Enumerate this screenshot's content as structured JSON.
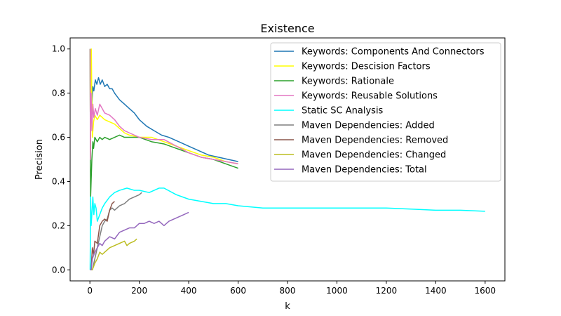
{
  "chart_data": {
    "type": "line",
    "title": "Existence",
    "xlabel": "k",
    "ylabel": "Precision",
    "xlim": [
      -80,
      1680
    ],
    "ylim": [
      -0.05,
      1.05
    ],
    "xticks": [
      0,
      200,
      400,
      600,
      800,
      1000,
      1200,
      1400,
      1600
    ],
    "yticks": [
      0.0,
      0.2,
      0.4,
      0.6,
      0.8,
      1.0
    ],
    "grid": false,
    "legend_position": "top-right",
    "series": [
      {
        "name": "Keywords: Components And Connectors",
        "color": "#1f77b4",
        "points": [
          [
            1,
            1.0
          ],
          [
            2,
            0.5
          ],
          [
            3,
            0.67
          ],
          [
            5,
            0.8
          ],
          [
            8,
            0.75
          ],
          [
            12,
            0.83
          ],
          [
            16,
            0.81
          ],
          [
            22,
            0.86
          ],
          [
            28,
            0.84
          ],
          [
            35,
            0.87
          ],
          [
            42,
            0.84
          ],
          [
            50,
            0.86
          ],
          [
            60,
            0.83
          ],
          [
            70,
            0.84
          ],
          [
            80,
            0.82
          ],
          [
            90,
            0.82
          ],
          [
            100,
            0.8
          ],
          [
            120,
            0.77
          ],
          [
            140,
            0.75
          ],
          [
            160,
            0.73
          ],
          [
            180,
            0.71
          ],
          [
            200,
            0.68
          ],
          [
            230,
            0.65
          ],
          [
            260,
            0.63
          ],
          [
            290,
            0.61
          ],
          [
            320,
            0.6
          ],
          [
            360,
            0.58
          ],
          [
            400,
            0.56
          ],
          [
            440,
            0.54
          ],
          [
            480,
            0.52
          ],
          [
            520,
            0.51
          ],
          [
            560,
            0.5
          ],
          [
            600,
            0.49
          ]
        ]
      },
      {
        "name": "Keywords: Descision Factors",
        "color": "#ffff00",
        "points": [
          [
            1,
            1.0
          ],
          [
            2,
            0.5
          ],
          [
            4,
            0.75
          ],
          [
            6,
            1.0
          ],
          [
            8,
            0.75
          ],
          [
            10,
            0.6
          ],
          [
            15,
            0.67
          ],
          [
            20,
            0.7
          ],
          [
            30,
            0.68
          ],
          [
            40,
            0.7
          ],
          [
            50,
            0.69
          ],
          [
            60,
            0.68
          ],
          [
            80,
            0.67
          ],
          [
            100,
            0.66
          ],
          [
            120,
            0.64
          ],
          [
            140,
            0.62
          ],
          [
            160,
            0.61
          ],
          [
            200,
            0.6
          ],
          [
            250,
            0.6
          ],
          [
            300,
            0.58
          ],
          [
            350,
            0.56
          ],
          [
            400,
            0.54
          ],
          [
            450,
            0.52
          ],
          [
            500,
            0.51
          ],
          [
            550,
            0.49
          ],
          [
            600,
            0.48
          ]
        ]
      },
      {
        "name": "Keywords: Rationale",
        "color": "#2ca02c",
        "points": [
          [
            1,
            1.0
          ],
          [
            2,
            0.5
          ],
          [
            3,
            0.33
          ],
          [
            5,
            0.4
          ],
          [
            8,
            0.5
          ],
          [
            12,
            0.58
          ],
          [
            15,
            0.55
          ],
          [
            20,
            0.6
          ],
          [
            30,
            0.58
          ],
          [
            40,
            0.6
          ],
          [
            50,
            0.59
          ],
          [
            60,
            0.6
          ],
          [
            80,
            0.59
          ],
          [
            100,
            0.6
          ],
          [
            120,
            0.61
          ],
          [
            140,
            0.6
          ],
          [
            160,
            0.6
          ],
          [
            200,
            0.6
          ],
          [
            250,
            0.58
          ],
          [
            300,
            0.57
          ],
          [
            350,
            0.55
          ],
          [
            400,
            0.53
          ],
          [
            450,
            0.51
          ],
          [
            500,
            0.5
          ],
          [
            550,
            0.48
          ],
          [
            600,
            0.46
          ]
        ]
      },
      {
        "name": "Keywords: Reusable Solutions",
        "color": "#e377c2",
        "points": [
          [
            1,
            1.0
          ],
          [
            2,
            0.5
          ],
          [
            3,
            0.67
          ],
          [
            5,
            0.8
          ],
          [
            8,
            0.63
          ],
          [
            12,
            0.75
          ],
          [
            16,
            0.69
          ],
          [
            22,
            0.73
          ],
          [
            30,
            0.7
          ],
          [
            40,
            0.75
          ],
          [
            50,
            0.73
          ],
          [
            60,
            0.71
          ],
          [
            80,
            0.7
          ],
          [
            100,
            0.68
          ],
          [
            120,
            0.65
          ],
          [
            140,
            0.63
          ],
          [
            160,
            0.62
          ],
          [
            200,
            0.6
          ],
          [
            250,
            0.59
          ],
          [
            300,
            0.59
          ],
          [
            350,
            0.56
          ],
          [
            400,
            0.53
          ],
          [
            450,
            0.51
          ],
          [
            500,
            0.5
          ],
          [
            550,
            0.49
          ],
          [
            600,
            0.48
          ]
        ]
      },
      {
        "name": "Static SC Analysis",
        "color": "#00ffff",
        "points": [
          [
            1,
            0.0
          ],
          [
            3,
            0.33
          ],
          [
            5,
            0.2
          ],
          [
            8,
            0.25
          ],
          [
            12,
            0.33
          ],
          [
            16,
            0.25
          ],
          [
            20,
            0.3
          ],
          [
            25,
            0.28
          ],
          [
            30,
            0.22
          ],
          [
            40,
            0.25
          ],
          [
            50,
            0.28
          ],
          [
            60,
            0.3
          ],
          [
            80,
            0.33
          ],
          [
            100,
            0.35
          ],
          [
            120,
            0.36
          ],
          [
            150,
            0.37
          ],
          [
            180,
            0.36
          ],
          [
            200,
            0.36
          ],
          [
            240,
            0.35
          ],
          [
            280,
            0.37
          ],
          [
            300,
            0.37
          ],
          [
            350,
            0.34
          ],
          [
            400,
            0.32
          ],
          [
            450,
            0.31
          ],
          [
            500,
            0.3
          ],
          [
            550,
            0.3
          ],
          [
            600,
            0.29
          ],
          [
            700,
            0.28
          ],
          [
            800,
            0.28
          ],
          [
            900,
            0.28
          ],
          [
            1000,
            0.28
          ],
          [
            1100,
            0.28
          ],
          [
            1200,
            0.28
          ],
          [
            1300,
            0.275
          ],
          [
            1400,
            0.27
          ],
          [
            1500,
            0.27
          ],
          [
            1600,
            0.265
          ]
        ]
      },
      {
        "name": "Maven Dependencies: Added",
        "color": "#7f7f7f",
        "points": [
          [
            1,
            0.0
          ],
          [
            5,
            0.0
          ],
          [
            10,
            0.0
          ],
          [
            20,
            0.05
          ],
          [
            30,
            0.1
          ],
          [
            40,
            0.15
          ],
          [
            50,
            0.2
          ],
          [
            60,
            0.22
          ],
          [
            70,
            0.23
          ],
          [
            80,
            0.27
          ],
          [
            90,
            0.28
          ],
          [
            100,
            0.27
          ],
          [
            120,
            0.29
          ],
          [
            140,
            0.3
          ],
          [
            160,
            0.32
          ],
          [
            180,
            0.33
          ],
          [
            200,
            0.34
          ],
          [
            210,
            0.35
          ]
        ]
      },
      {
        "name": "Maven Dependencies: Removed",
        "color": "#8c564b",
        "points": [
          [
            1,
            0.0
          ],
          [
            5,
            0.0
          ],
          [
            10,
            0.1
          ],
          [
            15,
            0.07
          ],
          [
            20,
            0.13
          ],
          [
            30,
            0.12
          ],
          [
            40,
            0.2
          ],
          [
            50,
            0.22
          ],
          [
            60,
            0.23
          ],
          [
            70,
            0.22
          ],
          [
            80,
            0.27
          ],
          [
            90,
            0.3
          ],
          [
            100,
            0.31
          ]
        ]
      },
      {
        "name": "Maven Dependencies: Changed",
        "color": "#bcbd22",
        "points": [
          [
            1,
            0.0
          ],
          [
            10,
            0.0
          ],
          [
            20,
            0.03
          ],
          [
            30,
            0.05
          ],
          [
            40,
            0.08
          ],
          [
            50,
            0.07
          ],
          [
            60,
            0.08
          ],
          [
            80,
            0.1
          ],
          [
            100,
            0.11
          ],
          [
            120,
            0.12
          ],
          [
            140,
            0.13
          ],
          [
            150,
            0.11
          ],
          [
            160,
            0.12
          ],
          [
            180,
            0.13
          ],
          [
            190,
            0.14
          ]
        ]
      },
      {
        "name": "Maven Dependencies: Total",
        "color": "#9467bd",
        "points": [
          [
            1,
            0.0
          ],
          [
            5,
            0.0
          ],
          [
            10,
            0.05
          ],
          [
            20,
            0.08
          ],
          [
            30,
            0.1
          ],
          [
            40,
            0.12
          ],
          [
            50,
            0.11
          ],
          [
            60,
            0.13
          ],
          [
            80,
            0.15
          ],
          [
            100,
            0.14
          ],
          [
            120,
            0.17
          ],
          [
            140,
            0.18
          ],
          [
            160,
            0.19
          ],
          [
            180,
            0.19
          ],
          [
            200,
            0.21
          ],
          [
            220,
            0.21
          ],
          [
            240,
            0.22
          ],
          [
            260,
            0.21
          ],
          [
            280,
            0.22
          ],
          [
            300,
            0.2
          ],
          [
            320,
            0.22
          ],
          [
            340,
            0.23
          ],
          [
            360,
            0.24
          ],
          [
            380,
            0.25
          ],
          [
            400,
            0.26
          ]
        ]
      }
    ]
  }
}
